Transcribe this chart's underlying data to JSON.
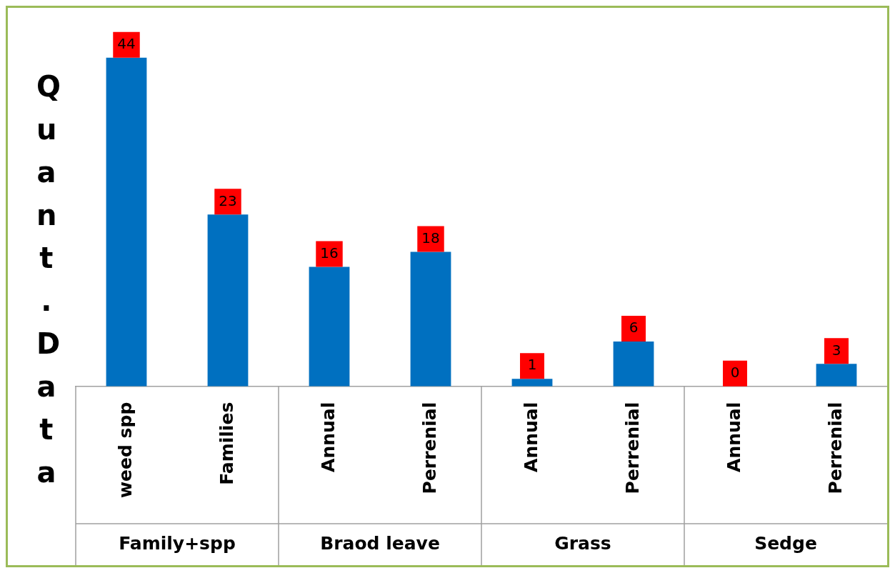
{
  "chart_data": {
    "type": "bar",
    "ylabel": "Quant.Data",
    "categories": [
      "weed spp",
      "Families",
      "Annual",
      "Perrenial",
      "Annual",
      "Perrenial",
      "Annual",
      "Perrenial"
    ],
    "values": [
      44,
      23,
      16,
      18,
      1,
      6,
      0,
      3
    ],
    "color": "#0070c0",
    "data_labels": true,
    "grid": false,
    "legend": false,
    "annotations": [
      "Family+spp",
      "Braod leave",
      "Grass",
      "Sedge"
    ]
  }
}
